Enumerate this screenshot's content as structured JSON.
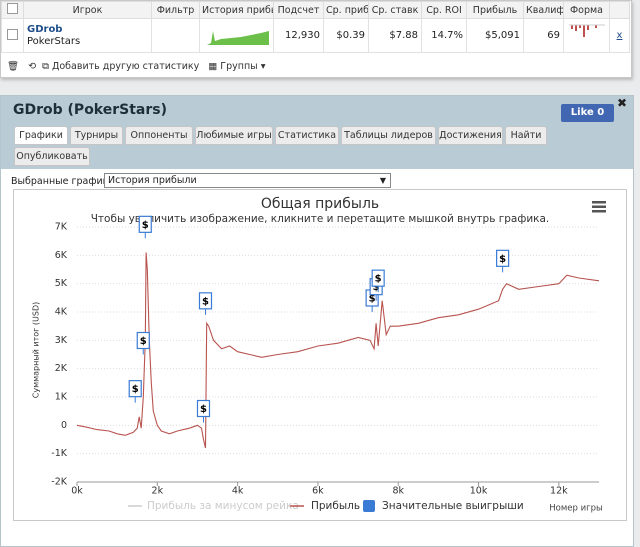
{
  "header_table": {
    "columns": [
      "Игрок",
      "Фильтр",
      "История прибыль",
      "Подсчет",
      "Ср. прибы",
      "Ср. ставк",
      "Ср. ROI",
      "Прибыль",
      "Квалиф",
      "Форма"
    ],
    "row": {
      "player": "GDrob",
      "site": "PokerStars",
      "hands": "12,930",
      "avg_profit": "$0.39",
      "avg_stake": "$7.88",
      "roi": "14.7%",
      "profit": "$5,091",
      "qualif": "69",
      "remove": "x"
    }
  },
  "toolbar": {
    "add_stats": "Добавить другую статистику",
    "groups": "Группы"
  },
  "panel": {
    "title": "GDrob (PokerStars)",
    "like": "Like 0",
    "tabs": [
      "Графики",
      "Турниры",
      "Оппоненты",
      "Любимые игры",
      "Статистика",
      "Таблицы лидеров",
      "Достижения",
      "Найти",
      "Опубликовать"
    ],
    "selected_label": "Выбранные графики:",
    "selected_value": "История прибыли"
  },
  "chart_data": {
    "type": "line",
    "title": "Общая прибыль",
    "subtitle": "Чтобы увеличить изображение, кликните и перетащите мышкой внутрь графика.",
    "y_label": "Суммарный итог (USD)",
    "x_label": "Номер игры",
    "x": [
      0,
      200,
      500,
      800,
      1000,
      1200,
      1400,
      1500,
      1550,
      1600,
      1650,
      1700,
      1720,
      1750,
      1800,
      1850,
      1900,
      2000,
      2100,
      2300,
      2500,
      2800,
      3000,
      3100,
      3150,
      3200,
      3230,
      3280,
      3400,
      3600,
      3800,
      4000,
      4300,
      4600,
      5000,
      5500,
      6000,
      6500,
      7000,
      7300,
      7400,
      7450,
      7500,
      7600,
      7700,
      7800,
      8000,
      8500,
      9000,
      9500,
      10000,
      10500,
      10600,
      10700,
      11000,
      11500,
      12000,
      12200,
      12500,
      13000
    ],
    "series": [
      {
        "name": "Прибыль за минусом рейка",
        "color": "#cccccc",
        "visible": false
      },
      {
        "name": "Прибыль",
        "color": "#b85450",
        "visible": true,
        "values": [
          0,
          -50,
          -150,
          -200,
          -300,
          -350,
          -250,
          -100,
          300,
          -100,
          1000,
          3000,
          6100,
          5500,
          3000,
          1500,
          500,
          0,
          -200,
          -300,
          -200,
          -100,
          0,
          -100,
          -500,
          -800,
          3600,
          3500,
          3000,
          2700,
          2800,
          2600,
          2500,
          2400,
          2500,
          2600,
          2800,
          2900,
          3100,
          3000,
          2700,
          3600,
          2800,
          4400,
          3200,
          3500,
          3500,
          3600,
          3800,
          3900,
          4100,
          4400,
          4800,
          5000,
          4800,
          4900,
          5000,
          5300,
          5200,
          5100
        ]
      }
    ],
    "flags": {
      "name": "Значительные выигрыши",
      "color": "#3a7bd5",
      "label": "$",
      "x": [
        1450,
        1650,
        1700,
        3150,
        3200,
        7350,
        7450,
        7500,
        10600
      ],
      "values": [
        800,
        2500,
        6600,
        100,
        3900,
        4000,
        4400,
        4700,
        5400
      ]
    },
    "xlim": [
      0,
      13000
    ],
    "ylim": [
      -2000,
      7000
    ],
    "xticks": [
      {
        "value": 0,
        "label": "0k"
      },
      {
        "value": 2000,
        "label": "2k"
      },
      {
        "value": 4000,
        "label": "4k"
      },
      {
        "value": 6000,
        "label": "6k"
      },
      {
        "value": 8000,
        "label": "8k"
      },
      {
        "value": 10000,
        "label": "10k"
      },
      {
        "value": 12000,
        "label": "12k"
      }
    ],
    "yticks": [
      {
        "value": -2000,
        "label": "-2K"
      },
      {
        "value": -1000,
        "label": "-1K"
      },
      {
        "value": 0,
        "label": "0"
      },
      {
        "value": 1000,
        "label": "1K"
      },
      {
        "value": 2000,
        "label": "2K"
      },
      {
        "value": 3000,
        "label": "3K"
      },
      {
        "value": 4000,
        "label": "4K"
      },
      {
        "value": 5000,
        "label": "5K"
      },
      {
        "value": 6000,
        "label": "6K"
      },
      {
        "value": 7000,
        "label": "7K"
      }
    ],
    "grid": true
  }
}
